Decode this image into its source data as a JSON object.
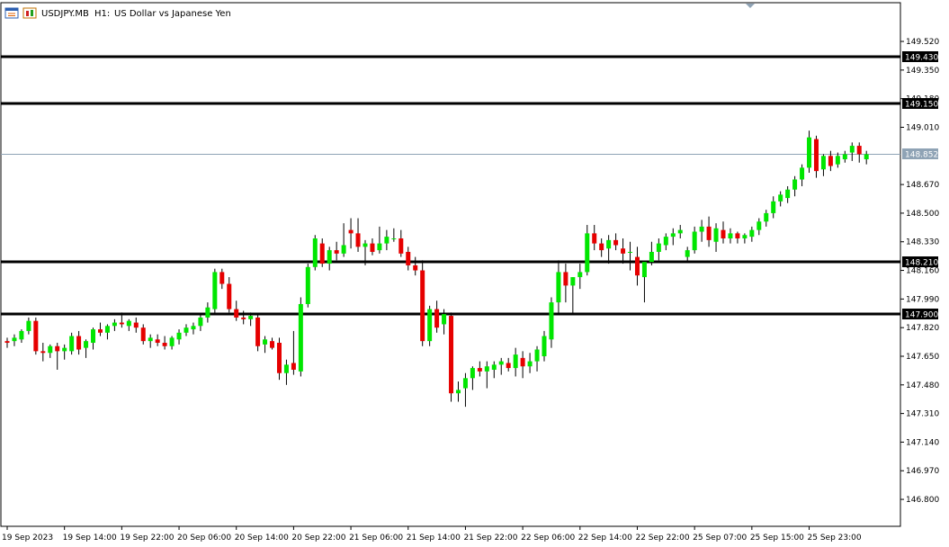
{
  "window": {
    "symbol": "USDJPY.MB",
    "timeframe": "H1:",
    "description": "US Dollar vs Japanese Yen",
    "icon": "chart-window-icon"
  },
  "colors": {
    "bull": "#00e600",
    "bear": "#e60000",
    "wick": "#000000",
    "level_line": "#000000",
    "bid_line": "#8fa3b5",
    "background": "#ffffff",
    "axis": "#000000"
  },
  "chart_data": {
    "type": "candlestick",
    "ylim": [
      146.64,
      149.75
    ],
    "grid": false,
    "y_ticks": [
      "149.520",
      "149.350",
      "149.180",
      "149.010",
      "148.670",
      "148.500",
      "148.330",
      "148.160",
      "147.990",
      "147.820",
      "147.650",
      "147.480",
      "147.310",
      "147.140",
      "146.970",
      "146.800"
    ],
    "x_ticks": [
      {
        "label": "19 Sep 2023",
        "index": 0
      },
      {
        "label": "19 Sep 14:00",
        "index": 8
      },
      {
        "label": "19 Sep 22:00",
        "index": 16
      },
      {
        "label": "20 Sep 06:00",
        "index": 24
      },
      {
        "label": "20 Sep 14:00",
        "index": 32
      },
      {
        "label": "20 Sep 22:00",
        "index": 40
      },
      {
        "label": "21 Sep 06:00",
        "index": 48
      },
      {
        "label": "21 Sep 14:00",
        "index": 56
      },
      {
        "label": "21 Sep 22:00",
        "index": 64
      },
      {
        "label": "22 Sep 06:00",
        "index": 72
      },
      {
        "label": "22 Sep 14:00",
        "index": 80
      },
      {
        "label": "22 Sep 22:00",
        "index": 88
      },
      {
        "label": "25 Sep 07:00",
        "index": 96
      },
      {
        "label": "25 Sep 15:00",
        "index": 104
      },
      {
        "label": "25 Sep 23:00",
        "index": 112
      }
    ],
    "levels": [
      {
        "value": 149.43,
        "label": "149.430"
      },
      {
        "value": 149.15,
        "label": "149.150"
      },
      {
        "value": 148.21,
        "label": "148.210"
      },
      {
        "value": 147.9,
        "label": "147.900"
      }
    ],
    "bid": {
      "value": 148.852,
      "label": "148.852"
    },
    "candles": [
      [
        147.74,
        147.76,
        147.7,
        147.73
      ],
      [
        147.74,
        147.78,
        147.71,
        147.76
      ],
      [
        147.75,
        147.81,
        147.73,
        147.8
      ],
      [
        147.8,
        147.88,
        147.78,
        147.86
      ],
      [
        147.86,
        147.88,
        147.66,
        147.68
      ],
      [
        147.68,
        147.73,
        147.62,
        147.67
      ],
      [
        147.67,
        147.72,
        147.64,
        147.71
      ],
      [
        147.71,
        147.73,
        147.57,
        147.68
      ],
      [
        147.68,
        147.72,
        147.63,
        147.7
      ],
      [
        147.68,
        147.79,
        147.66,
        147.77
      ],
      [
        147.77,
        147.8,
        147.66,
        147.69
      ],
      [
        147.7,
        147.75,
        147.64,
        147.74
      ],
      [
        147.73,
        147.82,
        147.69,
        147.81
      ],
      [
        147.81,
        147.85,
        147.77,
        147.79
      ],
      [
        147.79,
        147.84,
        147.75,
        147.83
      ],
      [
        147.83,
        147.87,
        147.8,
        147.85
      ],
      [
        147.85,
        147.91,
        147.82,
        147.84
      ],
      [
        147.83,
        147.87,
        147.8,
        147.86
      ],
      [
        147.85,
        147.88,
        147.79,
        147.82
      ],
      [
        147.82,
        147.84,
        147.72,
        147.74
      ],
      [
        147.74,
        147.78,
        147.7,
        147.76
      ],
      [
        147.75,
        147.78,
        147.71,
        147.73
      ],
      [
        147.73,
        147.77,
        147.69,
        147.71
      ],
      [
        147.71,
        147.77,
        147.69,
        147.76
      ],
      [
        147.75,
        147.81,
        147.72,
        147.79
      ],
      [
        147.79,
        147.84,
        147.77,
        147.82
      ],
      [
        147.81,
        147.85,
        147.78,
        147.83
      ],
      [
        147.83,
        147.9,
        147.8,
        147.88
      ],
      [
        147.88,
        147.97,
        147.85,
        147.94
      ],
      [
        147.93,
        148.17,
        147.9,
        148.15
      ],
      [
        148.15,
        148.17,
        148.05,
        148.08
      ],
      [
        148.08,
        148.12,
        147.91,
        147.93
      ],
      [
        147.93,
        147.98,
        147.86,
        147.88
      ],
      [
        147.88,
        147.92,
        147.84,
        147.87
      ],
      [
        147.87,
        147.91,
        147.83,
        147.89
      ],
      [
        147.88,
        147.9,
        147.68,
        147.71
      ],
      [
        147.72,
        147.77,
        147.67,
        147.75
      ],
      [
        147.74,
        147.76,
        147.69,
        147.7
      ],
      [
        147.73,
        147.76,
        147.51,
        147.55
      ],
      [
        147.55,
        147.63,
        147.48,
        147.6
      ],
      [
        147.61,
        147.8,
        147.54,
        147.57
      ],
      [
        147.56,
        148.0,
        147.53,
        147.96
      ],
      [
        147.96,
        148.2,
        147.94,
        148.18
      ],
      [
        148.18,
        148.37,
        148.16,
        148.35
      ],
      [
        148.32,
        148.35,
        148.18,
        148.2
      ],
      [
        148.2,
        148.3,
        148.16,
        148.28
      ],
      [
        148.28,
        148.33,
        148.22,
        148.26
      ],
      [
        148.26,
        148.44,
        148.24,
        148.31
      ],
      [
        148.4,
        148.47,
        148.29,
        148.38
      ],
      [
        148.38,
        148.47,
        148.27,
        148.3
      ],
      [
        148.3,
        148.34,
        148.19,
        148.32
      ],
      [
        148.32,
        148.35,
        148.25,
        148.27
      ],
      [
        148.28,
        148.42,
        148.26,
        148.32
      ],
      [
        148.32,
        148.4,
        148.28,
        148.36
      ],
      [
        148.35,
        148.41,
        148.33,
        148.35
      ],
      [
        148.35,
        148.4,
        148.24,
        148.26
      ],
      [
        148.27,
        148.3,
        148.16,
        148.19
      ],
      [
        148.19,
        148.24,
        148.13,
        148.16
      ],
      [
        148.16,
        148.22,
        147.71,
        147.74
      ],
      [
        147.74,
        147.95,
        147.71,
        147.93
      ],
      [
        147.93,
        147.98,
        147.79,
        147.82
      ],
      [
        147.84,
        147.93,
        147.78,
        147.9
      ],
      [
        147.89,
        147.91,
        147.38,
        147.43
      ],
      [
        147.43,
        147.5,
        147.38,
        147.45
      ],
      [
        147.46,
        147.55,
        147.35,
        147.52
      ],
      [
        147.52,
        147.59,
        147.45,
        147.58
      ],
      [
        147.58,
        147.62,
        147.53,
        147.56
      ],
      [
        147.56,
        147.62,
        147.46,
        147.59
      ],
      [
        147.57,
        147.62,
        147.52,
        147.6
      ],
      [
        147.6,
        147.64,
        147.54,
        147.62
      ],
      [
        147.61,
        147.64,
        147.56,
        147.58
      ],
      [
        147.58,
        147.7,
        147.53,
        147.66
      ],
      [
        147.64,
        147.68,
        147.52,
        147.59
      ],
      [
        147.59,
        147.67,
        147.55,
        147.62
      ],
      [
        147.62,
        147.71,
        147.56,
        147.69
      ],
      [
        147.65,
        147.8,
        147.62,
        147.77
      ],
      [
        147.75,
        148.0,
        147.7,
        147.97
      ],
      [
        147.97,
        148.22,
        147.9,
        148.15
      ],
      [
        148.15,
        148.2,
        147.97,
        148.07
      ],
      [
        148.07,
        148.12,
        147.9,
        148.12
      ],
      [
        148.12,
        148.2,
        148.05,
        148.15
      ],
      [
        148.15,
        148.43,
        148.13,
        148.38
      ],
      [
        148.38,
        148.43,
        148.28,
        148.32
      ],
      [
        148.32,
        148.35,
        148.24,
        148.28
      ],
      [
        148.29,
        148.37,
        148.2,
        148.34
      ],
      [
        148.34,
        148.38,
        148.28,
        148.31
      ],
      [
        148.29,
        148.35,
        148.2,
        148.26
      ],
      [
        148.27,
        148.33,
        148.16,
        148.27
      ],
      [
        148.24,
        148.3,
        148.07,
        148.13
      ],
      [
        148.12,
        148.21,
        147.97,
        148.21
      ],
      [
        148.21,
        148.33,
        148.19,
        148.27
      ],
      [
        148.27,
        148.35,
        148.22,
        148.32
      ],
      [
        148.31,
        148.38,
        148.28,
        148.36
      ],
      [
        148.36,
        148.41,
        148.31,
        148.38
      ],
      [
        148.38,
        148.43,
        148.35,
        148.4
      ],
      [
        148.24,
        148.3,
        148.21,
        148.28
      ],
      [
        148.28,
        148.42,
        148.26,
        148.39
      ],
      [
        148.39,
        148.46,
        148.33,
        148.42
      ],
      [
        148.42,
        148.48,
        148.3,
        148.34
      ],
      [
        148.33,
        148.44,
        148.27,
        148.41
      ],
      [
        148.4,
        148.45,
        148.32,
        148.35
      ],
      [
        148.35,
        148.41,
        148.32,
        148.38
      ],
      [
        148.38,
        148.39,
        148.32,
        148.35
      ],
      [
        148.35,
        148.38,
        148.32,
        148.37
      ],
      [
        148.36,
        148.42,
        148.33,
        148.4
      ],
      [
        148.4,
        148.47,
        148.37,
        148.45
      ],
      [
        148.45,
        148.52,
        148.42,
        148.5
      ],
      [
        148.5,
        148.6,
        148.47,
        148.57
      ],
      [
        148.57,
        148.63,
        148.54,
        148.61
      ],
      [
        148.59,
        148.66,
        148.56,
        148.64
      ],
      [
        148.64,
        148.72,
        148.6,
        148.7
      ],
      [
        148.7,
        148.79,
        148.66,
        148.77
      ],
      [
        148.77,
        148.99,
        148.74,
        148.95
      ],
      [
        148.94,
        148.96,
        148.71,
        148.75
      ],
      [
        148.76,
        148.85,
        148.72,
        148.84
      ],
      [
        148.84,
        148.87,
        148.75,
        148.78
      ],
      [
        148.79,
        148.86,
        148.77,
        148.84
      ],
      [
        148.82,
        148.87,
        148.8,
        148.85
      ],
      [
        148.86,
        148.92,
        148.81,
        148.9
      ],
      [
        148.9,
        148.92,
        148.8,
        148.85
      ],
      [
        148.82,
        148.87,
        148.79,
        148.85
      ]
    ]
  }
}
